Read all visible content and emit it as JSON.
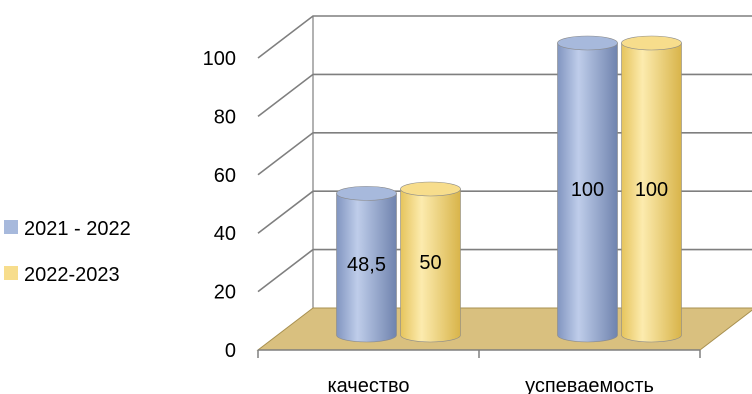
{
  "chart_data": {
    "type": "bar",
    "style": "3d-cylinder",
    "categories": [
      "качество",
      "успеваемость"
    ],
    "series": [
      {
        "name": "2021 - 2022",
        "values": [
          48.5,
          100
        ],
        "labels": [
          "48,5",
          "100"
        ],
        "color": "#A7B9DC"
      },
      {
        "name": "2022-2023",
        "values": [
          50,
          100
        ],
        "labels": [
          "50",
          "100"
        ],
        "color": "#F7DD8C"
      }
    ],
    "yticks": [
      "0",
      "20",
      "40",
      "60",
      "80",
      "100"
    ],
    "ylim": [
      0,
      100
    ],
    "grid": true,
    "legend_position": "left",
    "floor_color": "#D9C07F",
    "grid_color": "#7F7F7F"
  }
}
